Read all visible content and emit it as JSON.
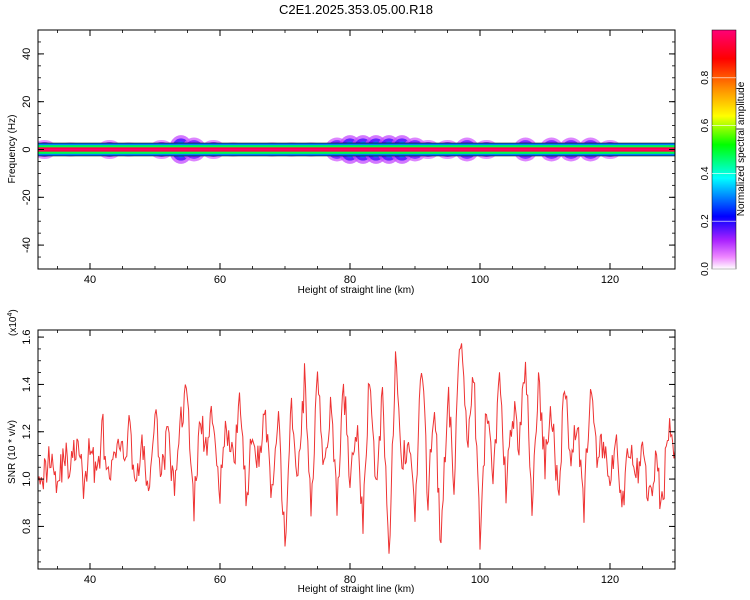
{
  "figure": {
    "title": "C2E1.2025.353.05.00.R18"
  },
  "chart_data": [
    {
      "type": "heatmap",
      "title": "C2E1.2025.353.05.00.R18",
      "xlabel": "Height of straight line (km)",
      "ylabel": "Frequency (Hz)",
      "xlim": [
        32,
        130
      ],
      "ylim": [
        -50,
        50
      ],
      "xticks": [
        40,
        60,
        80,
        100,
        120
      ],
      "yticks": [
        40,
        20,
        0,
        -20,
        -40
      ],
      "grid": false,
      "colorbar": {
        "label": "Normalized spectral amplitude",
        "range": [
          0.0,
          1.0
        ],
        "ticks": [
          0.0,
          0.2,
          0.4,
          0.6,
          0.8
        ],
        "colormap": [
          "#ffffff",
          "#cc66ff",
          "#0000ff",
          "#00ffff",
          "#00ff00",
          "#ffff00",
          "#ff8800",
          "#ff0000",
          "#ff0066"
        ]
      },
      "bands": [
        {
          "x": [
            32,
            130
          ],
          "center_hz": 0,
          "peak_amplitude": 0.95,
          "halfwidth_hz": 1.5
        }
      ],
      "clusters": [
        {
          "x": 33,
          "spread_hz": 4,
          "amplitude": 0.5
        },
        {
          "x": 37,
          "spread_hz": 3,
          "amplitude": 0.4
        },
        {
          "x": 43,
          "spread_hz": 4,
          "amplitude": 0.5
        },
        {
          "x": 46,
          "spread_hz": 3,
          "amplitude": 0.4
        },
        {
          "x": 51,
          "spread_hz": 4,
          "amplitude": 0.5
        },
        {
          "x": 54,
          "spread_hz": 6,
          "amplitude": 0.7
        },
        {
          "x": 56,
          "spread_hz": 5,
          "amplitude": 0.6
        },
        {
          "x": 59,
          "spread_hz": 4,
          "amplitude": 0.5
        },
        {
          "x": 62,
          "spread_hz": 3,
          "amplitude": 0.4
        },
        {
          "x": 68,
          "spread_hz": 3,
          "amplitude": 0.4
        },
        {
          "x": 71,
          "spread_hz": 3,
          "amplitude": 0.4
        },
        {
          "x": 74,
          "spread_hz": 3,
          "amplitude": 0.4
        },
        {
          "x": 78,
          "spread_hz": 5,
          "amplitude": 0.6
        },
        {
          "x": 80,
          "spread_hz": 6,
          "amplitude": 0.7
        },
        {
          "x": 82,
          "spread_hz": 6,
          "amplitude": 0.7
        },
        {
          "x": 84,
          "spread_hz": 6,
          "amplitude": 0.7
        },
        {
          "x": 86,
          "spread_hz": 6,
          "amplitude": 0.7
        },
        {
          "x": 88,
          "spread_hz": 6,
          "amplitude": 0.7
        },
        {
          "x": 90,
          "spread_hz": 5,
          "amplitude": 0.6
        },
        {
          "x": 92,
          "spread_hz": 4,
          "amplitude": 0.5
        },
        {
          "x": 95,
          "spread_hz": 4,
          "amplitude": 0.5
        },
        {
          "x": 98,
          "spread_hz": 5,
          "amplitude": 0.6
        },
        {
          "x": 101,
          "spread_hz": 4,
          "amplitude": 0.5
        },
        {
          "x": 107,
          "spread_hz": 5,
          "amplitude": 0.6
        },
        {
          "x": 111,
          "spread_hz": 5,
          "amplitude": 0.6
        },
        {
          "x": 114,
          "spread_hz": 5,
          "amplitude": 0.6
        },
        {
          "x": 117,
          "spread_hz": 5,
          "amplitude": 0.6
        },
        {
          "x": 120,
          "spread_hz": 4,
          "amplitude": 0.5
        }
      ]
    },
    {
      "type": "line",
      "xlabel": "Height of straight line (km)",
      "ylabel": "SNR (10 * v/v)",
      "yscale_label": "(x10",
      "yscale_exponent": "4",
      "xlim": [
        32,
        130
      ],
      "ylim": [
        0.62,
        1.63
      ],
      "xticks": [
        40,
        60,
        80,
        100,
        120
      ],
      "yticks": [
        1.6,
        1.4,
        1.2,
        1.0,
        0.8
      ],
      "ytick_labels": [
        "1.6",
        "1.4",
        "1.2",
        "1.0",
        "0.8"
      ],
      "grid": false,
      "series": [
        {
          "color": "#ee3333",
          "x": [
            32,
            33,
            34,
            35,
            36,
            37,
            38,
            39,
            40,
            41,
            42,
            43,
            44,
            45,
            46,
            47,
            48,
            49,
            50,
            51,
            52,
            53,
            54,
            55,
            56,
            57,
            58,
            59,
            60,
            61,
            62,
            63,
            64,
            65,
            66,
            67,
            68,
            69,
            70,
            71,
            72,
            73,
            74,
            75,
            76,
            77,
            78,
            79,
            80,
            81,
            82,
            83,
            84,
            85,
            86,
            87,
            88,
            89,
            90,
            91,
            92,
            93,
            94,
            95,
            96,
            97,
            98,
            99,
            100,
            101,
            102,
            103,
            104,
            105,
            106,
            107,
            108,
            109,
            110,
            111,
            112,
            113,
            114,
            115,
            116,
            117,
            118,
            119,
            120,
            121,
            122,
            123,
            124,
            125,
            126,
            127,
            128,
            129,
            130
          ],
          "values": [
            1.07,
            1.02,
            1.12,
            0.98,
            1.1,
            1.05,
            1.15,
            0.97,
            1.13,
            1.03,
            1.2,
            0.95,
            1.14,
            1.08,
            1.22,
            1.0,
            1.12,
            0.96,
            1.25,
            1.05,
            1.18,
            0.92,
            1.28,
            1.35,
            0.88,
            1.26,
            1.1,
            1.3,
            0.95,
            1.22,
            1.05,
            1.33,
            0.92,
            1.18,
            1.1,
            1.28,
            0.9,
            1.22,
            0.72,
            1.3,
            1.0,
            1.42,
            0.85,
            1.5,
            1.05,
            1.3,
            0.88,
            1.4,
            1.02,
            1.22,
            0.8,
            1.46,
            0.95,
            1.38,
            0.7,
            1.48,
            1.05,
            1.2,
            0.85,
            1.5,
            0.92,
            1.35,
            0.68,
            1.38,
            1.0,
            1.62,
            1.15,
            1.45,
            0.72,
            1.3,
            1.0,
            1.45,
            0.95,
            1.32,
            1.15,
            1.48,
            0.9,
            1.42,
            1.05,
            1.3,
            0.92,
            1.38,
            1.12,
            1.25,
            0.88,
            1.4,
            1.05,
            1.18,
            0.98,
            1.12,
            0.9,
            1.15,
            1.0,
            1.12,
            0.92,
            1.08,
            0.88,
            1.22,
            1.12
          ]
        }
      ]
    }
  ]
}
